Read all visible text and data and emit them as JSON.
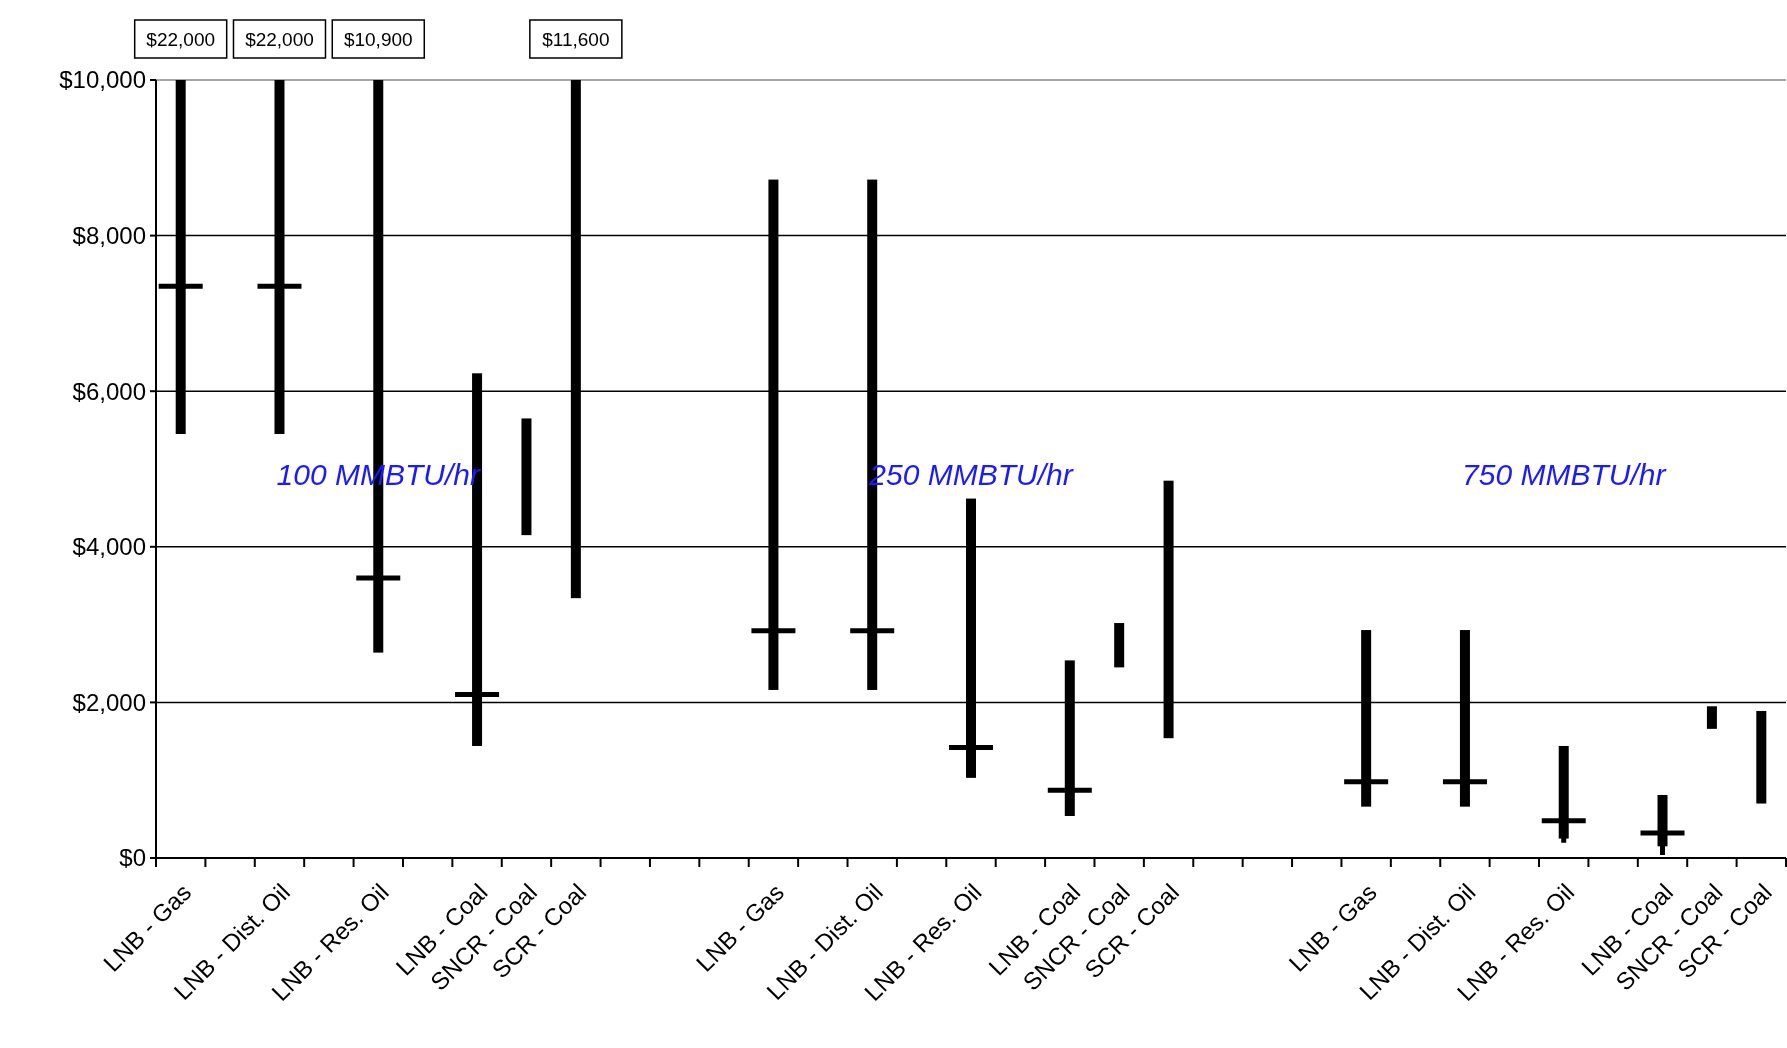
{
  "chart_data": {
    "type": "bar",
    "categories": [
      "LNB - Gas",
      null,
      "LNB - Dist. Oil",
      null,
      "LNB - Res. Oil",
      null,
      "LNB - Coal",
      "SNCR - Coal",
      "SCR - Coal",
      null,
      null,
      null,
      "LNB - Gas",
      null,
      "LNB - Dist. Oil",
      null,
      "LNB - Res. Oil",
      null,
      "LNB - Coal",
      "SNCR - Coal",
      "SCR - Coal",
      null,
      null,
      null,
      "LNB - Gas",
      null,
      "LNB - Dist. Oil",
      null,
      "LNB - Res. Oil",
      null,
      "LNB - Coal",
      "SNCR - Coal",
      "SCR - Coal"
    ],
    "series": [
      {
        "color": "#000000",
        "values": [
          4550,
          null,
          4550,
          null,
          7360,
          null,
          4790,
          1500,
          6660,
          null,
          null,
          null,
          6560,
          null,
          6560,
          null,
          3590,
          null,
          2000,
          570,
          3310,
          null,
          null,
          null,
          2270,
          null,
          2270,
          null,
          1190,
          null,
          660,
          290,
          1190
        ],
        "base": [
          5450,
          null,
          5450,
          null,
          2640,
          null,
          1440,
          4150,
          3340,
          null,
          null,
          null,
          2160,
          null,
          2160,
          null,
          1030,
          null,
          540,
          2450,
          1540,
          null,
          null,
          null,
          660,
          null,
          660,
          null,
          250,
          null,
          150,
          1660,
          700
        ]
      },
      {
        "type": "scatter",
        "color": "#000000",
        "marker": "cross",
        "values": [
          7350,
          null,
          7350,
          null,
          3600,
          null,
          2100,
          null,
          null,
          null,
          null,
          null,
          2920,
          null,
          2920,
          null,
          1420,
          null,
          870,
          null,
          null,
          null,
          null,
          null,
          980,
          null,
          980,
          null,
          480,
          null,
          320,
          null,
          null
        ]
      }
    ],
    "ylim": [
      0,
      10000
    ],
    "yticks": [
      {
        "value": 0,
        "label": "$0"
      },
      {
        "value": 2000,
        "label": "$2,000"
      },
      {
        "value": 4000,
        "label": "$4,000"
      },
      {
        "value": 6000,
        "label": "$6,000"
      },
      {
        "value": 8000,
        "label": "$8,000"
      },
      {
        "value": 10000,
        "label": "$10,000"
      }
    ],
    "grid": "y",
    "annotations": [
      "100 MMBTU/hr",
      "250 MMBTU/hr",
      "750 MMBTU/hr",
      {
        "text": "$22,000",
        "x": "LNB - Gas",
        "y": 10000
      },
      {
        "text": "$22,000",
        "x": "LNB - Dist. Oil",
        "y": 10000
      },
      {
        "text": "$10,900",
        "x": "LNB - Res. Oil",
        "y": 10000
      },
      {
        "text": "$11,600",
        "x": "SCR - Coal",
        "y": 10000
      }
    ]
  }
}
